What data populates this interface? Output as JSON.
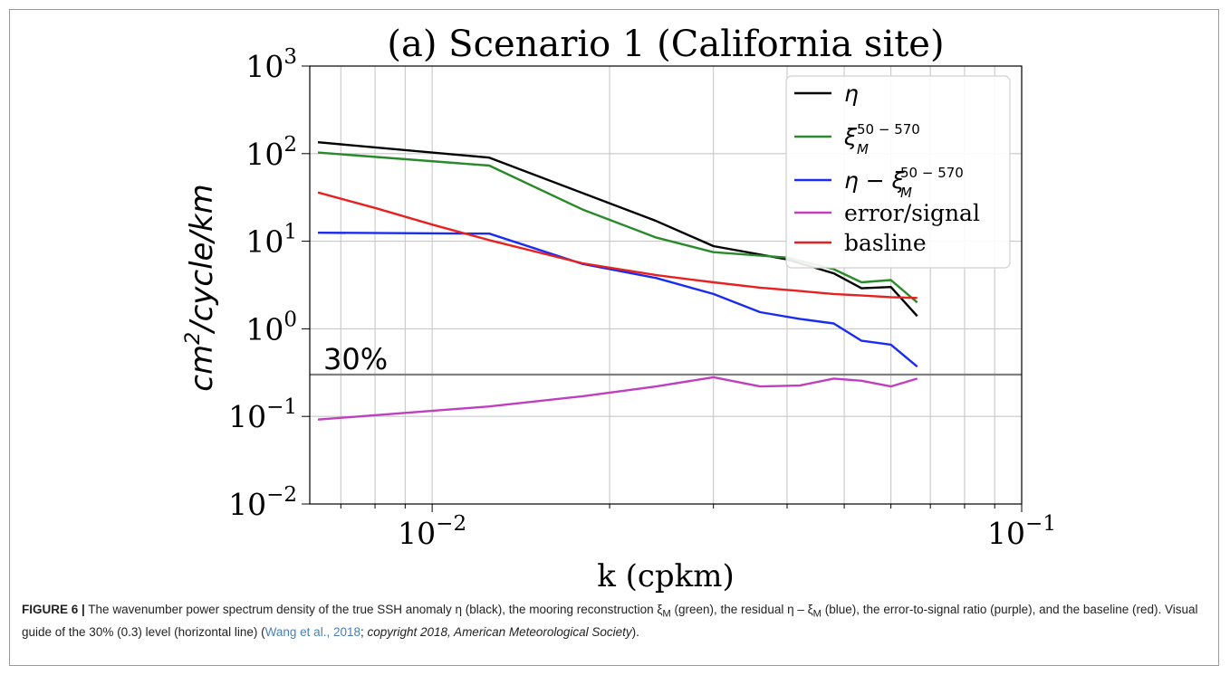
{
  "caption": {
    "figure_label": "FIGURE 6 |",
    "text_a": " The wavenumber power spectrum density of the true SSH anomaly η (black), the mooring reconstruction ξ",
    "sub_m1": "M",
    "text_b": " (green), the residual η – ξ",
    "sub_m2": "M",
    "text_c": " (blue), the error-to-signal ratio (purple), and the baseline (red). Visual guide of the 30% (0.3) level (horizontal line) (",
    "citation": "Wang et al., 2018",
    "text_d": "; ",
    "copyright": "copyright 2018, American Meteorological Society",
    "text_e": ")."
  },
  "chart_data": {
    "type": "line",
    "title": "(a) Scenario 1 (California site)",
    "xlabel": "k (cpkm)",
    "ylabel": "cm²/cycle/km",
    "xscale": "log",
    "yscale": "log",
    "xlim": [
      0.0062,
      0.1
    ],
    "ylim": [
      0.01,
      1000
    ],
    "x_ticks": [
      {
        "value": 0.01,
        "base": "10",
        "exp": "−2"
      },
      {
        "value": 0.1,
        "base": "10",
        "exp": "−1"
      }
    ],
    "y_ticks": [
      {
        "value": 0.01,
        "base": "10",
        "exp": "−2"
      },
      {
        "value": 0.1,
        "base": "10",
        "exp": "−1"
      },
      {
        "value": 1,
        "base": "10",
        "exp": "0"
      },
      {
        "value": 10,
        "base": "10",
        "exp": "1"
      },
      {
        "value": 100,
        "base": "10",
        "exp": "2"
      },
      {
        "value": 1000,
        "base": "10",
        "exp": "3"
      }
    ],
    "grid": true,
    "legend_position": "top-right",
    "reference_line": {
      "y": 0.3,
      "label": "30%",
      "color": "#808080"
    },
    "series": [
      {
        "name": "η",
        "legend_main": "η",
        "legend_sup": "",
        "legend_sub": "",
        "color": "#000000",
        "x": [
          0.0064,
          0.0125,
          0.024,
          0.03,
          0.04,
          0.048,
          0.0535,
          0.06,
          0.0665
        ],
        "y": [
          135,
          90,
          17,
          8.8,
          6.2,
          4.3,
          2.9,
          3.0,
          1.4
        ]
      },
      {
        "name": "ξ_M^{50-570}",
        "legend_main": "ξ",
        "legend_sup": "50 − 570",
        "legend_sub": "M",
        "color": "#2a8a2a",
        "x": [
          0.0064,
          0.0125,
          0.018,
          0.024,
          0.03,
          0.04,
          0.048,
          0.0535,
          0.06,
          0.0665
        ],
        "y": [
          103,
          73,
          23,
          11,
          7.5,
          6.5,
          4.8,
          3.4,
          3.6,
          2.0
        ]
      },
      {
        "name": "η − ξ_M^{50-570}",
        "legend_main": "η − ξ",
        "legend_sup": "50 − 570",
        "legend_sub": "M",
        "color": "#1a2cf0",
        "x": [
          0.0064,
          0.0125,
          0.018,
          0.024,
          0.03,
          0.036,
          0.042,
          0.048,
          0.0535,
          0.06,
          0.0665
        ],
        "y": [
          12.5,
          12.2,
          5.5,
          3.8,
          2.5,
          1.55,
          1.3,
          1.15,
          0.73,
          0.66,
          0.37
        ]
      },
      {
        "name": "error/signal",
        "legend_main": "error/signal",
        "legend_sup": "",
        "legend_sub": "",
        "color": "#bf3fbf",
        "x": [
          0.0064,
          0.0125,
          0.018,
          0.024,
          0.03,
          0.036,
          0.042,
          0.048,
          0.0535,
          0.06,
          0.0665
        ],
        "y": [
          0.092,
          0.13,
          0.17,
          0.22,
          0.28,
          0.22,
          0.225,
          0.27,
          0.255,
          0.22,
          0.27
        ]
      },
      {
        "name": "basline",
        "legend_main": "basline",
        "legend_sup": "",
        "legend_sub": "",
        "color": "#e82020",
        "x": [
          0.0064,
          0.008,
          0.01,
          0.0125,
          0.018,
          0.024,
          0.03,
          0.036,
          0.042,
          0.048,
          0.0535,
          0.06,
          0.0665
        ],
        "y": [
          36,
          24,
          15.5,
          10.3,
          5.6,
          4.1,
          3.4,
          2.95,
          2.7,
          2.5,
          2.4,
          2.3,
          2.25
        ]
      }
    ]
  }
}
